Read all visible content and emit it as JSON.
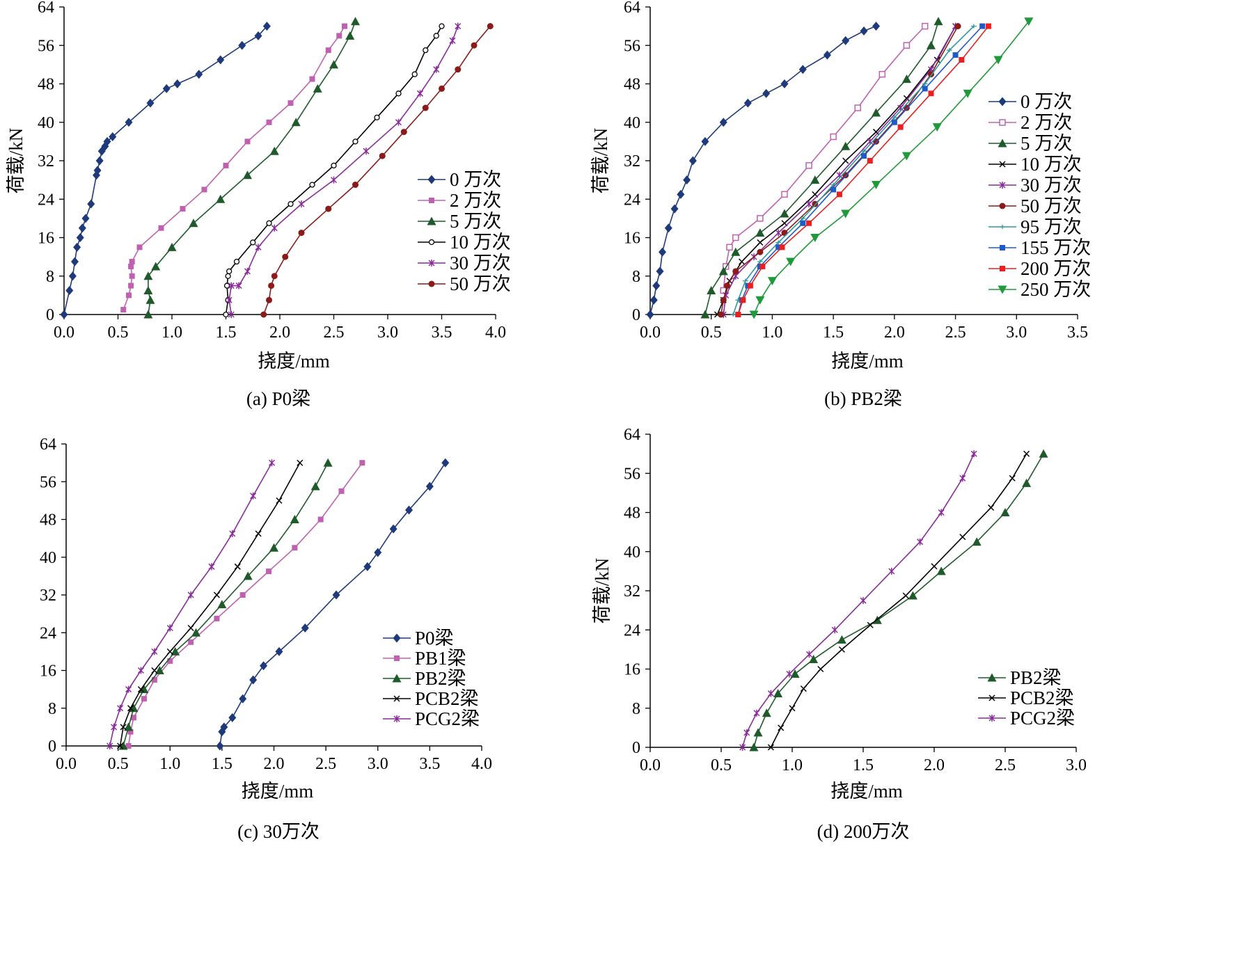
{
  "chart_data": [
    {
      "id": "a",
      "type": "line",
      "title": "(a) P0梁",
      "xlabel": "挠度/mm",
      "ylabel": "荷载/kN",
      "xlim": [
        0,
        4.0
      ],
      "ylim": [
        0,
        64
      ],
      "xticks": [
        0,
        0.5,
        1.0,
        1.5,
        2.0,
        2.5,
        3.0,
        3.5,
        4.0
      ],
      "xtick_labels": [
        "0.0",
        "0.5",
        "1.0",
        "1.5",
        "2.0",
        "2.5",
        "3.0",
        "3.5",
        "4.0"
      ],
      "yticks": [
        0,
        8,
        16,
        24,
        32,
        40,
        48,
        56,
        64
      ],
      "ytick_labels": [
        "0",
        "8",
        "16",
        "24",
        "32",
        "40",
        "48",
        "56",
        "64"
      ],
      "legend_position": "right-middle",
      "series": [
        {
          "name": "0 万次",
          "color": "#1f3a7a",
          "marker": "diamond",
          "x": [
            0,
            0.05,
            0.08,
            0.1,
            0.12,
            0.15,
            0.17,
            0.2,
            0.25,
            0.3,
            0.31,
            0.33,
            0.35,
            0.38,
            0.4,
            0.45,
            0.6,
            0.8,
            0.95,
            1.05,
            1.25,
            1.45,
            1.65,
            1.8,
            1.88
          ],
          "y": [
            0,
            5,
            8,
            11,
            14,
            16,
            18,
            20,
            23,
            29,
            30,
            32,
            34,
            35,
            36,
            37,
            40,
            44,
            47,
            48,
            50,
            53,
            56,
            58,
            60
          ]
        },
        {
          "name": "2 万次",
          "color": "#c060b0",
          "marker": "square",
          "x": [
            0.55,
            0.6,
            0.62,
            0.63,
            0.62,
            0.63,
            0.7,
            0.9,
            1.1,
            1.3,
            1.5,
            1.7,
            1.9,
            2.1,
            2.3,
            2.45,
            2.55,
            2.6
          ],
          "y": [
            1,
            4,
            6,
            8,
            10,
            11,
            14,
            18,
            22,
            26,
            31,
            36,
            40,
            44,
            49,
            55,
            58,
            60
          ]
        },
        {
          "name": "5 万次",
          "color": "#1e5a2a",
          "marker": "triangle",
          "x": [
            0.78,
            0.8,
            0.78,
            0.78,
            0.85,
            1.0,
            1.2,
            1.45,
            1.7,
            1.95,
            2.15,
            2.35,
            2.5,
            2.65,
            2.7
          ],
          "y": [
            0,
            3,
            5,
            8,
            10,
            14,
            19,
            24,
            29,
            34,
            40,
            47,
            52,
            58,
            61
          ]
        },
        {
          "name": "10 万次",
          "color": "#000000",
          "marker": "circle-open",
          "x": [
            1.5,
            1.52,
            1.51,
            1.52,
            1.53,
            1.6,
            1.75,
            1.9,
            2.1,
            2.3,
            2.5,
            2.7,
            2.9,
            3.1,
            3.25,
            3.35,
            3.45,
            3.5
          ],
          "y": [
            0,
            3,
            6,
            8,
            9,
            11,
            15,
            19,
            23,
            27,
            31,
            36,
            41,
            46,
            50,
            55,
            58,
            60
          ]
        },
        {
          "name": "30 万次",
          "color": "#8a2a9a",
          "marker": "star",
          "x": [
            1.55,
            1.53,
            1.55,
            1.62,
            1.7,
            1.8,
            1.95,
            2.2,
            2.5,
            2.8,
            3.1,
            3.3,
            3.45,
            3.6,
            3.65
          ],
          "y": [
            0,
            3,
            6,
            6,
            9,
            14,
            18,
            23,
            28,
            34,
            40,
            46,
            51,
            57,
            60
          ]
        },
        {
          "name": "50 万次",
          "color": "#8b1a1a",
          "marker": "circle",
          "x": [
            1.85,
            1.9,
            1.92,
            1.95,
            2.05,
            2.2,
            2.45,
            2.7,
            2.95,
            3.15,
            3.35,
            3.5,
            3.65,
            3.8,
            3.95
          ],
          "y": [
            0,
            3,
            6,
            8,
            12,
            17,
            22,
            27,
            33,
            38,
            43,
            47,
            51,
            56,
            60
          ]
        }
      ]
    },
    {
      "id": "b",
      "type": "line",
      "title": "(b) PB2梁",
      "xlabel": "挠度/mm",
      "ylabel": "荷载/kN",
      "xlim": [
        0,
        3.5
      ],
      "ylim": [
        0,
        64
      ],
      "xticks": [
        0,
        0.5,
        1.0,
        1.5,
        2.0,
        2.5,
        3.0,
        3.5
      ],
      "xtick_labels": [
        "0.0",
        "0.5",
        "1.0",
        "1.5",
        "2.0",
        "2.5",
        "3.0",
        "3.5"
      ],
      "yticks": [
        0,
        8,
        16,
        24,
        32,
        40,
        48,
        56,
        64
      ],
      "ytick_labels": [
        "0",
        "8",
        "16",
        "24",
        "32",
        "40",
        "48",
        "56",
        "64"
      ],
      "legend_position": "right",
      "series": [
        {
          "name": "0 万次",
          "color": "#1f3a7a",
          "marker": "diamond",
          "x": [
            0,
            0.03,
            0.05,
            0.08,
            0.1,
            0.15,
            0.2,
            0.25,
            0.3,
            0.35,
            0.45,
            0.6,
            0.8,
            0.95,
            1.1,
            1.25,
            1.45,
            1.6,
            1.75,
            1.85
          ],
          "y": [
            0,
            3,
            6,
            9,
            13,
            18,
            22,
            25,
            28,
            32,
            36,
            40,
            44,
            46,
            48,
            51,
            54,
            57,
            59,
            60
          ]
        },
        {
          "name": "2 万次",
          "color": "#c060b0",
          "marker": "square-open",
          "x": [
            0.6,
            0.62,
            0.65,
            0.7,
            0.9,
            1.1,
            1.3,
            1.5,
            1.7,
            1.9,
            2.1,
            2.25
          ],
          "y": [
            5,
            10,
            14,
            16,
            20,
            25,
            31,
            37,
            43,
            50,
            56,
            60
          ]
        },
        {
          "name": "5 万次",
          "color": "#1e5a2a",
          "marker": "triangle",
          "x": [
            0.45,
            0.5,
            0.6,
            0.7,
            0.9,
            1.1,
            1.35,
            1.6,
            1.85,
            2.1,
            2.3,
            2.36
          ],
          "y": [
            0,
            5,
            9,
            13,
            17,
            21,
            28,
            35,
            42,
            49,
            56,
            61
          ]
        },
        {
          "name": "10 万次",
          "color": "#000000",
          "marker": "x",
          "x": [
            0.55,
            0.6,
            0.65,
            0.75,
            0.9,
            1.1,
            1.35,
            1.6,
            1.85,
            2.1,
            2.35,
            2.5
          ],
          "y": [
            0,
            3,
            7,
            11,
            15,
            19,
            25,
            32,
            38,
            45,
            53,
            60
          ]
        },
        {
          "name": "30 万次",
          "color": "#8a2a9a",
          "marker": "star",
          "x": [
            0.6,
            0.62,
            0.7,
            0.85,
            1.05,
            1.3,
            1.55,
            1.8,
            2.05,
            2.3,
            2.5
          ],
          "y": [
            0,
            4,
            8,
            12,
            17,
            23,
            29,
            36,
            43,
            51,
            60
          ]
        },
        {
          "name": "50 万次",
          "color": "#8b1a1a",
          "marker": "circle",
          "x": [
            0.58,
            0.6,
            0.63,
            0.7,
            0.9,
            1.1,
            1.35,
            1.6,
            1.85,
            2.1,
            2.3,
            2.52
          ],
          "y": [
            0,
            3,
            6,
            9,
            13,
            17,
            23,
            29,
            36,
            43,
            50,
            60
          ]
        },
        {
          "name": "95 万次",
          "color": "#2a9aa0",
          "marker": "dash",
          "x": [
            0.68,
            0.72,
            0.78,
            0.9,
            1.05,
            1.25,
            1.5,
            1.75,
            2.0,
            2.25,
            2.45,
            2.65
          ],
          "y": [
            0,
            3,
            7,
            11,
            15,
            20,
            27,
            34,
            41,
            48,
            55,
            60
          ]
        },
        {
          "name": "155 万次",
          "color": "#1e5ac8",
          "marker": "square",
          "x": [
            0.72,
            0.75,
            0.8,
            0.9,
            1.05,
            1.25,
            1.5,
            1.75,
            2.0,
            2.25,
            2.5,
            2.72
          ],
          "y": [
            0,
            3,
            6,
            10,
            14,
            19,
            26,
            33,
            40,
            47,
            54,
            60
          ]
        },
        {
          "name": "200 万次",
          "color": "#e82020",
          "marker": "square",
          "x": [
            0.72,
            0.76,
            0.82,
            0.92,
            1.08,
            1.3,
            1.55,
            1.8,
            2.05,
            2.3,
            2.55,
            2.77
          ],
          "y": [
            0,
            3,
            6,
            10,
            14,
            19,
            25,
            32,
            39,
            46,
            53,
            60
          ]
        },
        {
          "name": "250 万次",
          "color": "#1e9a3a",
          "marker": "triangle-down",
          "x": [
            0.85,
            0.9,
            1.0,
            1.15,
            1.35,
            1.6,
            1.85,
            2.1,
            2.35,
            2.6,
            2.85,
            3.1
          ],
          "y": [
            0,
            3,
            7,
            11,
            16,
            21,
            27,
            33,
            39,
            46,
            53,
            61
          ]
        }
      ]
    },
    {
      "id": "c",
      "type": "line",
      "title": "(c) 30万次",
      "xlabel": "挠度/mm",
      "ylabel": "",
      "xlim": [
        0,
        4.0
      ],
      "ylim": [
        0,
        64
      ],
      "xticks": [
        0,
        0.5,
        1.0,
        1.5,
        2.0,
        2.5,
        3.0,
        3.5,
        4.0
      ],
      "xtick_labels": [
        "0.0",
        "0.5",
        "1.0",
        "1.5",
        "2.0",
        "2.5",
        "3.0",
        "3.5",
        "4.0"
      ],
      "yticks": [
        0,
        8,
        16,
        24,
        32,
        40,
        48,
        56,
        64
      ],
      "ytick_labels": [
        "0",
        "8",
        "16",
        "24",
        "32",
        "40",
        "48",
        "56",
        "64"
      ],
      "legend_position": "bottom-right",
      "series": [
        {
          "name": "P0梁",
          "color": "#1f3a7a",
          "marker": "diamond",
          "x": [
            1.48,
            1.5,
            1.52,
            1.6,
            1.7,
            1.8,
            1.9,
            2.05,
            2.3,
            2.6,
            2.9,
            3.0,
            3.15,
            3.3,
            3.5,
            3.65
          ],
          "y": [
            0,
            3,
            4,
            6,
            10,
            14,
            17,
            20,
            25,
            32,
            38,
            41,
            46,
            50,
            55,
            60
          ]
        },
        {
          "name": "PB1梁",
          "color": "#c060b0",
          "marker": "square",
          "x": [
            0.6,
            0.62,
            0.65,
            0.75,
            0.85,
            1.0,
            1.2,
            1.45,
            1.7,
            1.95,
            2.2,
            2.45,
            2.65,
            2.85
          ],
          "y": [
            0,
            3,
            6,
            10,
            14,
            18,
            22,
            27,
            32,
            37,
            42,
            48,
            54,
            60
          ]
        },
        {
          "name": "PB2梁",
          "color": "#1e5a2a",
          "marker": "triangle",
          "x": [
            0.55,
            0.6,
            0.65,
            0.75,
            0.9,
            1.05,
            1.25,
            1.5,
            1.75,
            2.0,
            2.2,
            2.4,
            2.52
          ],
          "y": [
            0,
            4,
            8,
            12,
            16,
            20,
            24,
            30,
            36,
            42,
            48,
            55,
            60
          ]
        },
        {
          "name": "PCB2梁",
          "color": "#000000",
          "marker": "x",
          "x": [
            0.52,
            0.55,
            0.62,
            0.72,
            0.85,
            1.0,
            1.2,
            1.45,
            1.65,
            1.85,
            2.05,
            2.25
          ],
          "y": [
            0,
            4,
            8,
            12,
            16,
            20,
            25,
            32,
            38,
            45,
            52,
            60
          ]
        },
        {
          "name": "PCG2梁",
          "color": "#8a2a9a",
          "marker": "star",
          "x": [
            0.42,
            0.46,
            0.52,
            0.6,
            0.72,
            0.85,
            1.0,
            1.2,
            1.4,
            1.6,
            1.8,
            1.98
          ],
          "y": [
            0,
            4,
            8,
            12,
            16,
            20,
            25,
            32,
            38,
            45,
            53,
            60
          ]
        }
      ]
    },
    {
      "id": "d",
      "type": "line",
      "title": "(d) 200万次",
      "xlabel": "挠度/mm",
      "ylabel": "荷载/kN",
      "xlim": [
        0,
        3.0
      ],
      "ylim": [
        0,
        64
      ],
      "xticks": [
        0,
        0.5,
        1.0,
        1.5,
        2.0,
        2.5,
        3.0
      ],
      "xtick_labels": [
        "0.0",
        "0.5",
        "1.0",
        "1.5",
        "2.0",
        "2.5",
        "3.0"
      ],
      "yticks": [
        0,
        8,
        16,
        24,
        32,
        40,
        48,
        56,
        64
      ],
      "ytick_labels": [
        "0",
        "8",
        "16",
        "24",
        "32",
        "40",
        "48",
        "56",
        "64"
      ],
      "legend_position": "bottom-right",
      "series": [
        {
          "name": "PB2梁",
          "color": "#1e5a2a",
          "marker": "triangle",
          "x": [
            0.73,
            0.76,
            0.82,
            0.9,
            1.02,
            1.15,
            1.35,
            1.6,
            1.85,
            2.05,
            2.3,
            2.5,
            2.65,
            2.77
          ],
          "y": [
            0,
            3,
            7,
            11,
            15,
            18,
            22,
            26,
            31,
            36,
            42,
            48,
            54,
            60
          ]
        },
        {
          "name": "PCB2梁",
          "color": "#000000",
          "marker": "x",
          "x": [
            0.85,
            0.92,
            1.0,
            1.08,
            1.2,
            1.35,
            1.55,
            1.8,
            2.0,
            2.2,
            2.4,
            2.55,
            2.65
          ],
          "y": [
            0,
            4,
            8,
            12,
            16,
            20,
            25,
            31,
            37,
            43,
            49,
            55,
            60
          ]
        },
        {
          "name": "PCG2梁",
          "color": "#8a2a9a",
          "marker": "star",
          "x": [
            0.65,
            0.68,
            0.75,
            0.85,
            0.98,
            1.12,
            1.3,
            1.5,
            1.7,
            1.9,
            2.05,
            2.2,
            2.28
          ],
          "y": [
            0,
            3,
            7,
            11,
            15,
            19,
            24,
            30,
            36,
            42,
            48,
            55,
            60
          ]
        }
      ]
    }
  ]
}
